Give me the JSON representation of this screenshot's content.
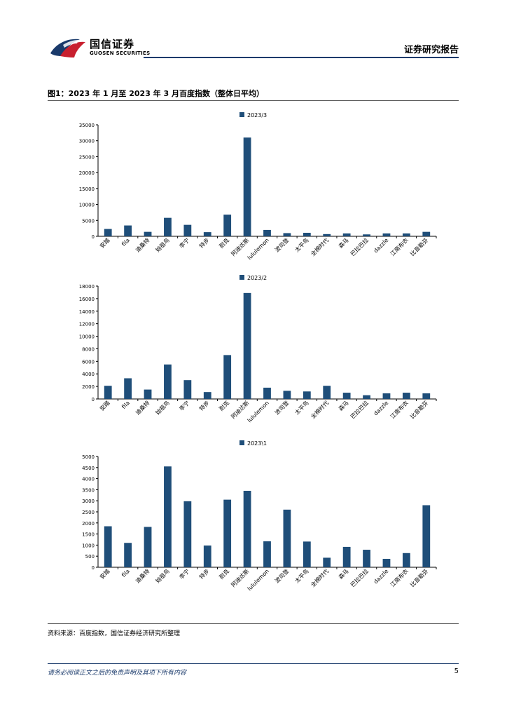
{
  "header": {
    "logo_cn": "国信证券",
    "logo_en": "GUOSEN SECURITIES",
    "report_type": "证券研究报告",
    "brand_color": "#c8202f",
    "accent_color": "#1a3a6b"
  },
  "figure": {
    "title": "图1：2023 年 1 月至 2023 年 3 月百度指数（整体日平均）"
  },
  "chart_data": [
    {
      "type": "bar",
      "legend": "2023/3",
      "legend_position": "top",
      "color": "#1f4e79",
      "categories": [
        "安踏",
        "fila",
        "迪桑特",
        "始祖鸟",
        "李宁",
        "特步",
        "耐克",
        "阿迪达斯",
        "lululemon",
        "波司登",
        "太平鸟",
        "全棉时代",
        "森马",
        "巴拉巴拉",
        "dazzle",
        "江南布衣",
        "比音勒芬"
      ],
      "values": [
        2300,
        3400,
        1400,
        5800,
        3600,
        1300,
        6800,
        31000,
        2000,
        1000,
        1100,
        700,
        900,
        600,
        900,
        900,
        1400
      ],
      "ylim": [
        0,
        35000
      ],
      "yticks": [
        0,
        5000,
        10000,
        15000,
        20000,
        25000,
        30000,
        35000
      ]
    },
    {
      "type": "bar",
      "legend": "2023/2",
      "legend_position": "top",
      "color": "#1f4e79",
      "categories": [
        "安踏",
        "fila",
        "迪桑特",
        "始祖鸟",
        "李宁",
        "特步",
        "耐克",
        "阿迪达斯",
        "lululemon",
        "波司登",
        "太平鸟",
        "全棉时代",
        "森马",
        "巴拉巴拉",
        "dazzle",
        "江南布衣",
        "比音勒芬"
      ],
      "values": [
        2100,
        3300,
        1500,
        5500,
        3000,
        1100,
        7000,
        16900,
        1800,
        1300,
        1200,
        2100,
        1000,
        600,
        900,
        1000,
        900
      ],
      "ylim": [
        0,
        18000
      ],
      "yticks": [
        0,
        2000,
        4000,
        6000,
        8000,
        10000,
        12000,
        14000,
        16000,
        18000
      ]
    },
    {
      "type": "bar",
      "legend": "2023\\1",
      "legend_position": "top",
      "color": "#1f4e79",
      "categories": [
        "安踏",
        "fila",
        "迪桑特",
        "始祖鸟",
        "李宁",
        "特步",
        "耐克",
        "阿迪达斯",
        "lululemon",
        "波司登",
        "太平鸟",
        "全棉时代",
        "森马",
        "巴拉巴拉",
        "dazzle",
        "江南布衣",
        "比音勒芬"
      ],
      "values": [
        1850,
        1100,
        1820,
        4550,
        2980,
        980,
        3050,
        3450,
        1170,
        2600,
        1160,
        430,
        920,
        790,
        380,
        640,
        2800
      ],
      "ylim": [
        0,
        5000
      ],
      "yticks": [
        0,
        500,
        1000,
        1500,
        2000,
        2500,
        3000,
        3500,
        4000,
        4500,
        5000
      ]
    }
  ],
  "source": "资料来源：百度指数，国信证券经济研究所整理",
  "footer": {
    "disclaimer": "请务必阅读正文之后的免责声明及其项下所有内容",
    "page_number": "5"
  }
}
